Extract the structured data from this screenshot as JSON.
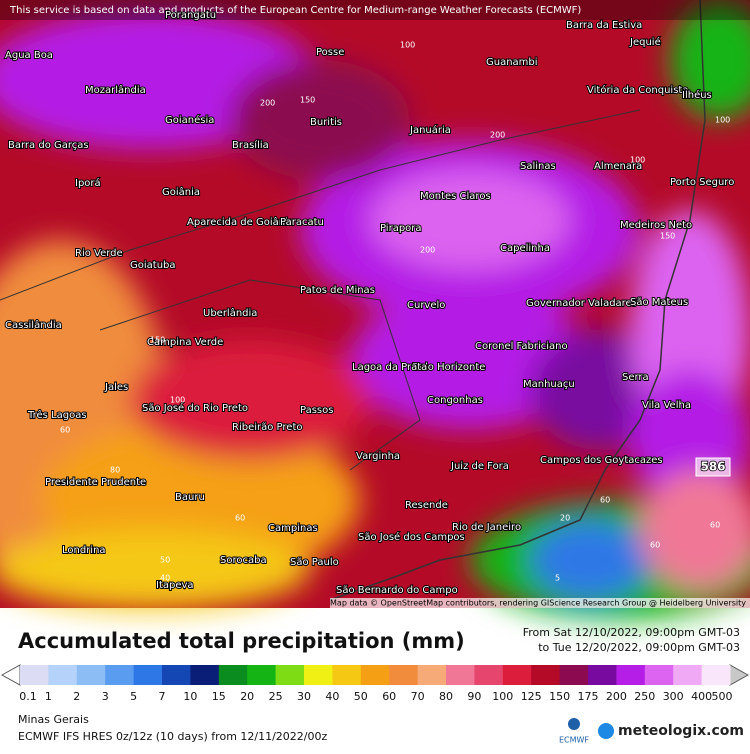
{
  "header": {
    "notice": "This service is based on data and products of the European Centre for Medium-range Weather Forecasts (ECMWF)"
  },
  "map": {
    "attribution": "Map data © OpenStreetMap contributors, rendering GIScience Research Group @ Heidelberg University",
    "places": [
      "Porangatu",
      "Agua Boa",
      "Mozarlândia",
      "Goianésia",
      "Brasília",
      "Barra do Garças",
      "Iporá",
      "Goiânia",
      "Aparecida de Goiânia",
      "Paracatu",
      "Pirapora",
      "Montes Claros",
      "Capelinha",
      "Rio Verde",
      "Goiatuba",
      "Patos de Minas",
      "Uberlândia",
      "Curvelo",
      "Governador Valadares",
      "São Mateus",
      "Cassilândia",
      "Campina Verde",
      "Coronel Fabriciano",
      "Belo Horizonte",
      "Lagoa da Prata",
      "Manhuaçu",
      "Serra",
      "Jales",
      "São José do Rio Preto",
      "Congonhas",
      "Vila Velha",
      "Três Lagoas",
      "Ribeirão Preto",
      "Passos",
      "Varginha",
      "Juiz de Fora",
      "Campos dos Goytacazes",
      "Presidente Prudente",
      "Bauru",
      "Resende",
      "Campinas",
      "São José dos Campos",
      "Rio de Janeiro",
      "Londrina",
      "Sorocaba",
      "São Paulo",
      "Itapeva",
      "São Bernardo do Campo",
      "Posse",
      "Guanambi",
      "Vitória da Conquista",
      "Januária",
      "Buritis",
      "Salinas",
      "Almenara",
      "Porto Seguro",
      "Medeiros Neto",
      "Ilhéus",
      "Barra da Estiva",
      "Jequié"
    ],
    "contour_labels": [
      "100",
      "200",
      "150",
      "200",
      "100",
      "150",
      "200",
      "100",
      "60",
      "80",
      "60",
      "50",
      "40",
      "60",
      "20",
      "5",
      "60",
      "100",
      "150",
      "60"
    ],
    "max_label": "586"
  },
  "footer": {
    "title": "Accumulated total precipitation (mm)",
    "period_from": "From Sat 12/10/2022, 09:00pm GMT-03",
    "period_to": "to Tue 12/20/2022, 09:00pm GMT-03",
    "region": "Minas Gerais",
    "model": "ECMWF IFS HRES 0z/12z (10 days) from 12/11/2022/00z",
    "logo_ecmwf": "ECMWF",
    "logo_site": "meteologix.com"
  },
  "legend": {
    "labels": [
      0.1,
      1,
      2,
      3,
      5,
      7,
      10,
      15,
      20,
      25,
      30,
      40,
      50,
      60,
      70,
      80,
      90,
      100,
      125,
      150,
      175,
      200,
      250,
      300,
      400,
      500
    ],
    "colors": [
      "#dcdcf5",
      "#b4d2fa",
      "#8cbef5",
      "#5a9cf0",
      "#2d78e6",
      "#1446b4",
      "#0a1e78",
      "#0a8c1e",
      "#14b414",
      "#7ddc14",
      "#f0f014",
      "#f5c814",
      "#f5a014",
      "#f08c3c",
      "#f5aa78",
      "#f07896",
      "#e6466e",
      "#dc1e3c",
      "#b40a28",
      "#8c0a50",
      "#780aa0",
      "#b41ee6",
      "#dc64f0",
      "#f0aaf5",
      "#fae6fa"
    ]
  }
}
